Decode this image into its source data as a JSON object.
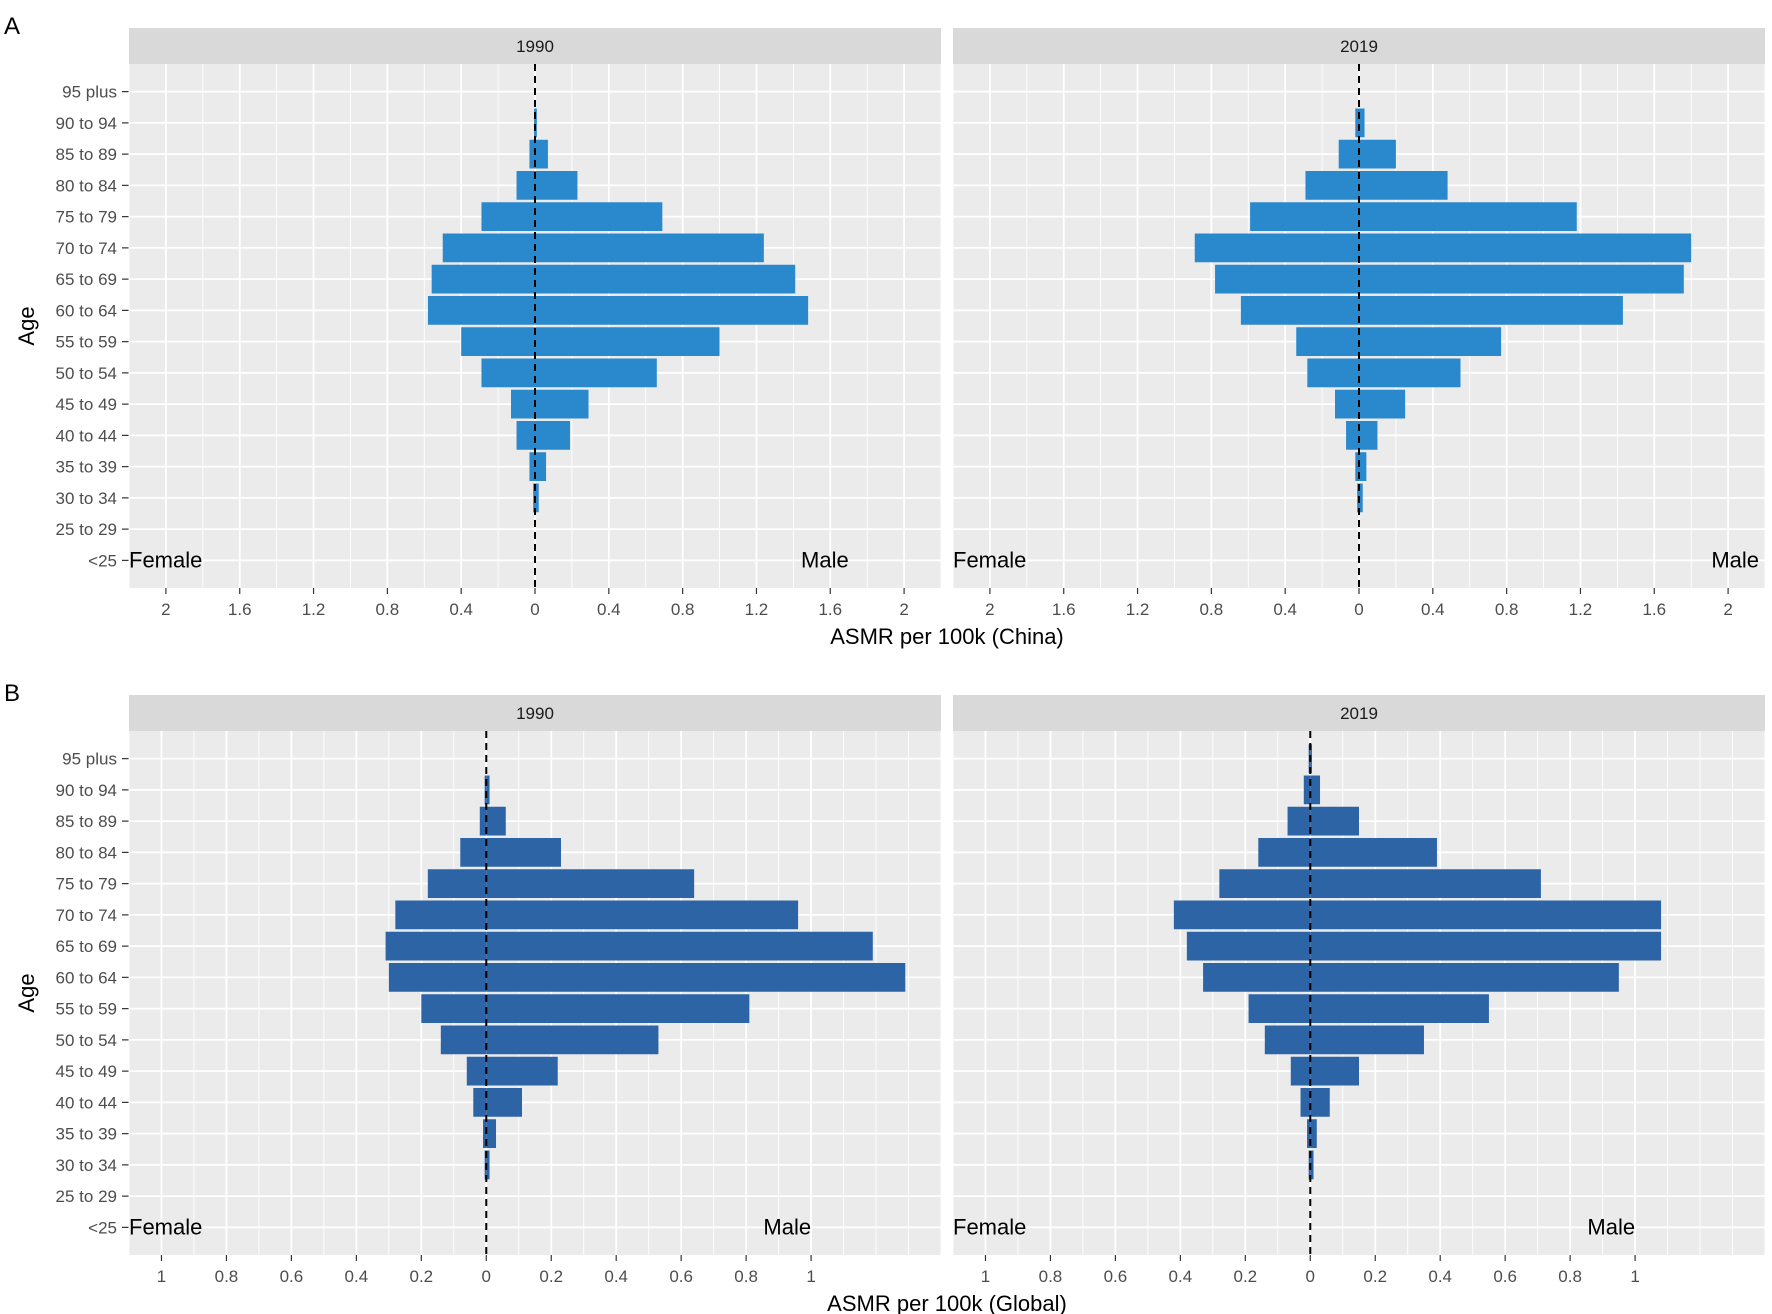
{
  "chart_data": [
    {
      "type": "bar",
      "panel_label": "A",
      "xlabel": "ASMR per 100k (China)",
      "ylabel": "Age",
      "bar_color": "#2a88cc",
      "female_label": "Female",
      "male_label": "Male",
      "categories": [
        "<25",
        "25 to 29",
        "30 to 34",
        "35 to 39",
        "40 to 44",
        "45 to 49",
        "50 to 54",
        "55 to 59",
        "60 to 64",
        "65 to 69",
        "70 to 74",
        "75 to 79",
        "80 to 84",
        "85 to 89",
        "90 to 94",
        "95 plus"
      ],
      "x_ticks": [
        2,
        1.6,
        1.2,
        0.8,
        0.4,
        0,
        0.4,
        0.8,
        1.2,
        1.6,
        2
      ],
      "xlim": [
        -2.2,
        2.2
      ],
      "facets": [
        {
          "title": "1990",
          "series": [
            {
              "name": "Female",
              "values": [
                0,
                0,
                0.01,
                0.03,
                0.1,
                0.13,
                0.29,
                0.4,
                0.58,
                0.56,
                0.5,
                0.29,
                0.1,
                0.03,
                0.005,
                0
              ]
            },
            {
              "name": "Male",
              "values": [
                0,
                0,
                0.02,
                0.06,
                0.19,
                0.29,
                0.66,
                1.0,
                1.48,
                1.41,
                1.24,
                0.69,
                0.23,
                0.07,
                0.01,
                0
              ]
            }
          ]
        },
        {
          "title": "2019",
          "series": [
            {
              "name": "Female",
              "values": [
                0,
                0,
                0.01,
                0.02,
                0.07,
                0.13,
                0.28,
                0.34,
                0.64,
                0.78,
                0.89,
                0.59,
                0.29,
                0.11,
                0.02,
                0
              ]
            },
            {
              "name": "Male",
              "values": [
                0,
                0,
                0.02,
                0.04,
                0.1,
                0.25,
                0.55,
                0.77,
                1.43,
                1.76,
                1.8,
                1.18,
                0.48,
                0.2,
                0.03,
                0
              ]
            }
          ]
        }
      ]
    },
    {
      "type": "bar",
      "panel_label": "B",
      "xlabel": "ASMR per 100k (Global)",
      "ylabel": "Age",
      "bar_color": "#2c64a6",
      "female_label": "Female",
      "male_label": "Male",
      "categories": [
        "<25",
        "25 to 29",
        "30 to 34",
        "35 to 39",
        "40 to 44",
        "45 to 49",
        "50 to 54",
        "55 to 59",
        "60 to 64",
        "65 to 69",
        "70 to 74",
        "75 to 79",
        "80 to 84",
        "85 to 89",
        "90 to 94",
        "95 plus"
      ],
      "x_ticks": [
        1,
        0.8,
        0.6,
        0.4,
        0.2,
        0,
        0.2,
        0.4,
        0.6,
        0.8,
        1
      ],
      "xlim": [
        -1.1,
        1.4
      ],
      "facets": [
        {
          "title": "1990",
          "series": [
            {
              "name": "Female",
              "values": [
                0,
                0,
                0.005,
                0.01,
                0.04,
                0.06,
                0.14,
                0.2,
                0.3,
                0.31,
                0.28,
                0.18,
                0.08,
                0.02,
                0.005,
                0
              ]
            },
            {
              "name": "Male",
              "values": [
                0,
                0,
                0.01,
                0.03,
                0.11,
                0.22,
                0.53,
                0.81,
                1.29,
                1.19,
                0.96,
                0.64,
                0.23,
                0.06,
                0.01,
                0
              ]
            }
          ]
        },
        {
          "title": "2019",
          "series": [
            {
              "name": "Female",
              "values": [
                0,
                0,
                0.005,
                0.01,
                0.03,
                0.06,
                0.14,
                0.19,
                0.33,
                0.38,
                0.42,
                0.28,
                0.16,
                0.07,
                0.02,
                0.005
              ]
            },
            {
              "name": "Male",
              "values": [
                0,
                0,
                0.01,
                0.02,
                0.06,
                0.15,
                0.35,
                0.55,
                0.95,
                1.08,
                1.08,
                0.71,
                0.39,
                0.15,
                0.03,
                0.005
              ]
            }
          ]
        }
      ]
    }
  ]
}
